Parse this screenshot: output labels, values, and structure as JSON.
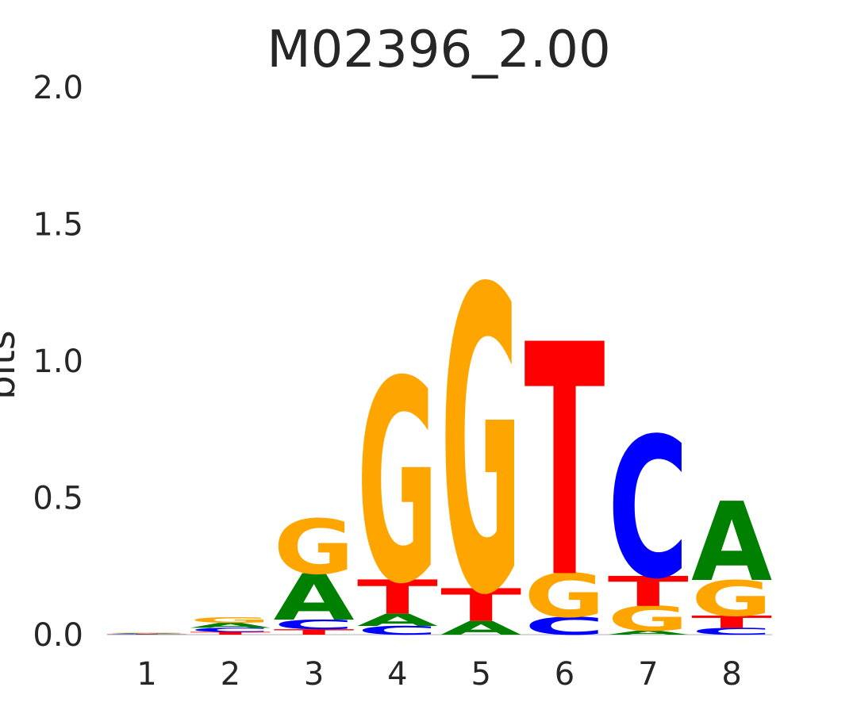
{
  "chart_data": {
    "type": "sequence-logo",
    "title": "M02396_2.00",
    "ylabel": "bits",
    "ylim": [
      0,
      2.0
    ],
    "yticks": [
      "0.0",
      "0.5",
      "1.0",
      "1.5",
      "2.0"
    ],
    "ytick_values": [
      0,
      0.5,
      1.0,
      1.5,
      2.0
    ],
    "categories": [
      "1",
      "2",
      "3",
      "4",
      "5",
      "6",
      "7",
      "8"
    ],
    "colors": {
      "A": "#008000",
      "C": "#0000ff",
      "G": "#ffa500",
      "T": "#ff0000"
    },
    "positions": [
      {
        "position": 1,
        "stack": [
          {
            "base": "T",
            "bits": 0.002
          },
          {
            "base": "C",
            "bits": 0.002
          },
          {
            "base": "A",
            "bits": 0.002
          },
          {
            "base": "G",
            "bits": 0.002
          }
        ]
      },
      {
        "position": 2,
        "stack": [
          {
            "base": "T",
            "bits": 0.01
          },
          {
            "base": "C",
            "bits": 0.015
          },
          {
            "base": "A",
            "bits": 0.018
          },
          {
            "base": "G",
            "bits": 0.02
          }
        ]
      },
      {
        "position": 3,
        "stack": [
          {
            "base": "T",
            "bits": 0.02
          },
          {
            "base": "C",
            "bits": 0.035
          },
          {
            "base": "A",
            "bits": 0.17
          },
          {
            "base": "G",
            "bits": 0.2
          }
        ]
      },
      {
        "position": 4,
        "stack": [
          {
            "base": "C",
            "bits": 0.032
          },
          {
            "base": "A",
            "bits": 0.045
          },
          {
            "base": "T",
            "bits": 0.125
          },
          {
            "base": "G",
            "bits": 0.74
          }
        ]
      },
      {
        "position": 5,
        "stack": [
          {
            "base": "A",
            "bits": 0.05
          },
          {
            "base": "T",
            "bits": 0.12
          },
          {
            "base": "G",
            "bits": 1.11
          }
        ]
      },
      {
        "position": 6,
        "stack": [
          {
            "base": "C",
            "bits": 0.065
          },
          {
            "base": "G",
            "bits": 0.16
          },
          {
            "base": "T",
            "bits": 0.85
          }
        ]
      },
      {
        "position": 7,
        "stack": [
          {
            "base": "A",
            "bits": 0.015
          },
          {
            "base": "G",
            "bits": 0.09
          },
          {
            "base": "T",
            "bits": 0.11
          },
          {
            "base": "C",
            "bits": 0.515
          }
        ]
      },
      {
        "position": 8,
        "stack": [
          {
            "base": "C",
            "bits": 0.025
          },
          {
            "base": "T",
            "bits": 0.045
          },
          {
            "base": "G",
            "bits": 0.13
          },
          {
            "base": "A",
            "bits": 0.29
          }
        ]
      }
    ]
  }
}
